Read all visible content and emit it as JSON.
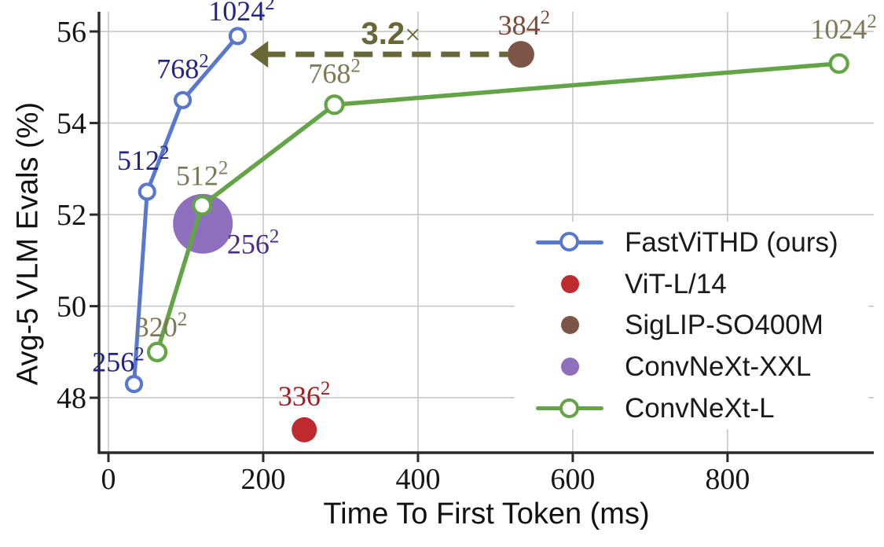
{
  "chart_data": {
    "type": "line+scatter",
    "title": "",
    "xlabel": "Time To First Token (ms)",
    "ylabel": "Avg-5 VLM Evals (%)",
    "xlim": [
      -12.2,
      989
    ],
    "ylim": [
      46.8,
      56.43
    ],
    "x_ticks": [
      0,
      200,
      400,
      600,
      800
    ],
    "y_ticks": [
      48,
      50,
      52,
      54,
      56
    ],
    "grid": true,
    "legend_position": "lower-right",
    "series": [
      {
        "name": "ConvNeXt-XXL",
        "plot": "scatter",
        "color": "#8D6FBE",
        "marker": "filled-circle",
        "marker_radius": 38,
        "points": [
          {
            "x": 122,
            "y": 51.8,
            "label_base": "256",
            "label_sup": "2",
            "label_color": "#4B2D83",
            "label_offset": [
              64,
              38
            ]
          }
        ]
      },
      {
        "name": "ConvNeXt-L",
        "plot": "line",
        "color": "#63A546",
        "line_width": 5.5,
        "marker": "open-circle",
        "marker_radius": 11,
        "points": [
          {
            "x": 63,
            "y": 49.0,
            "label_base": "320",
            "label_sup": "2",
            "label_color": "#7B7A55",
            "label_offset": [
              5,
              -20
            ]
          },
          {
            "x": 121,
            "y": 52.2,
            "label_base": "512",
            "label_sup": "2",
            "label_color": "#7B7A55",
            "label_offset": [
              0,
              -26
            ]
          },
          {
            "x": 292,
            "y": 54.4,
            "label_base": "768",
            "label_sup": "2",
            "label_color": "#7B7A55",
            "label_offset": [
              0,
              -28
            ]
          },
          {
            "x": 944,
            "y": 55.3,
            "label_base": "1024",
            "label_sup": "2",
            "label_color": "#7B7A55",
            "label_offset": [
              6,
              -32
            ]
          }
        ]
      },
      {
        "name": "FastViTHD (ours)",
        "plot": "line",
        "color": "#5878CE",
        "line_width": 5,
        "marker": "open-circle",
        "marker_radius": 9.5,
        "points": [
          {
            "x": 33,
            "y": 48.3,
            "label_base": "256",
            "label_sup": "2",
            "label_color": "#23238C",
            "label_offset": [
              -20,
              -16
            ]
          },
          {
            "x": 50,
            "y": 52.5,
            "label_base": "512",
            "label_sup": "2",
            "label_color": "#23238C",
            "label_offset": [
              -5,
              -28
            ]
          },
          {
            "x": 96,
            "y": 54.5,
            "label_base": "768",
            "label_sup": "2",
            "label_color": "#23238C",
            "label_offset": [
              0,
              -28
            ]
          },
          {
            "x": 167,
            "y": 55.9,
            "label_base": "1024",
            "label_sup": "2",
            "label_color": "#23238C",
            "label_offset": [
              5,
              -20
            ]
          }
        ]
      },
      {
        "name": "ViT-L/14",
        "plot": "scatter",
        "color": "#BF2A2F",
        "marker": "filled-circle",
        "marker_radius": 16,
        "points": [
          {
            "x": 253,
            "y": 47.3,
            "label_base": "336",
            "label_sup": "2",
            "label_color": "#A01D22",
            "label_offset": [
              0,
              -31
            ]
          }
        ]
      },
      {
        "name": "SigLIP-SO400M",
        "plot": "scatter",
        "color": "#7D5546",
        "marker": "filled-circle",
        "marker_radius": 17,
        "points": [
          {
            "x": 533,
            "y": 55.5,
            "label_base": "384",
            "label_sup": "2",
            "label_color": "#7C4A3A",
            "label_offset": [
              4,
              -25
            ]
          }
        ]
      }
    ],
    "annotation": {
      "arrow": {
        "from_x": 516,
        "to_x": 183,
        "y": 55.5,
        "color": "#686737"
      },
      "label_bold": "3.2",
      "label_rest": "×",
      "label_x": 365,
      "label_y": 55.95,
      "label_color": "#686737"
    }
  },
  "legend": {
    "items": [
      {
        "label": "FastViTHD (ours)",
        "color": "#5878CE",
        "marker": "line-circle"
      },
      {
        "label": "ViT-L/14",
        "color": "#BF2A2F",
        "marker": "dot"
      },
      {
        "label": "SigLIP-SO400M",
        "color": "#7D5546",
        "marker": "dot"
      },
      {
        "label": "ConvNeXt-XXL",
        "color": "#8D6FBE",
        "marker": "dot"
      },
      {
        "label": "ConvNeXt-L",
        "color": "#63A546",
        "marker": "line-circle"
      }
    ]
  }
}
